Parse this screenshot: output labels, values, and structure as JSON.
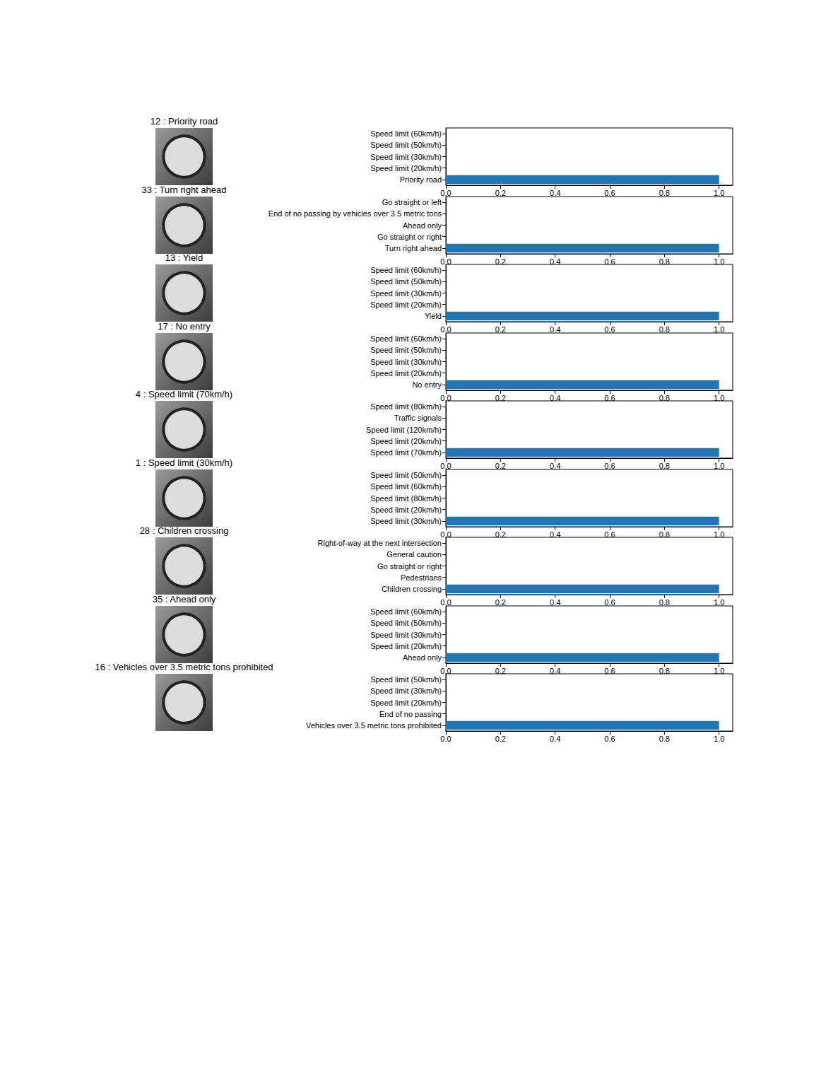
{
  "chart_data": [
    {
      "type": "bar",
      "orientation": "horizontal",
      "title": "12 : Priority road",
      "categories": [
        "Priority road",
        "Speed limit (20km/h)",
        "Speed limit (30km/h)",
        "Speed limit (50km/h)",
        "Speed limit (60km/h)"
      ],
      "values": [
        1.0,
        0,
        0,
        0,
        0
      ],
      "color": "#1f77b4",
      "grid": false,
      "xlim": [
        0,
        1.05
      ],
      "xticks": [
        {
          "value": 0,
          "label": "0.0"
        },
        {
          "value": 0.2,
          "label": "0.2"
        },
        {
          "value": 0.4,
          "label": "0.4"
        },
        {
          "value": 0.6,
          "label": "0.6"
        },
        {
          "value": 0.8,
          "label": "0.8"
        },
        {
          "value": 1.0,
          "label": "1.0"
        }
      ]
    },
    {
      "type": "bar",
      "orientation": "horizontal",
      "title": "33 : Turn right ahead",
      "categories": [
        "Turn right ahead",
        "Go straight or right",
        "Ahead only",
        "End of no passing by vehicles over 3.5 metric tons",
        "Go straight or left"
      ],
      "values": [
        1.0,
        0,
        0,
        0,
        0
      ],
      "color": "#1f77b4",
      "grid": false,
      "xlim": [
        0,
        1.05
      ],
      "xticks": [
        {
          "value": 0,
          "label": "0.0"
        },
        {
          "value": 0.2,
          "label": "0.2"
        },
        {
          "value": 0.4,
          "label": "0.4"
        },
        {
          "value": 0.6,
          "label": "0.6"
        },
        {
          "value": 0.8,
          "label": "0.8"
        },
        {
          "value": 1.0,
          "label": "1.0"
        }
      ]
    },
    {
      "type": "bar",
      "orientation": "horizontal",
      "title": "13 : Yield",
      "categories": [
        "Yield",
        "Speed limit (20km/h)",
        "Speed limit (30km/h)",
        "Speed limit (50km/h)",
        "Speed limit (60km/h)"
      ],
      "values": [
        1.0,
        0,
        0,
        0,
        0
      ],
      "color": "#1f77b4",
      "grid": false,
      "xlim": [
        0,
        1.05
      ],
      "xticks": [
        {
          "value": 0,
          "label": "0.0"
        },
        {
          "value": 0.2,
          "label": "0.2"
        },
        {
          "value": 0.4,
          "label": "0.4"
        },
        {
          "value": 0.6,
          "label": "0.6"
        },
        {
          "value": 0.8,
          "label": "0.8"
        },
        {
          "value": 1.0,
          "label": "1.0"
        }
      ]
    },
    {
      "type": "bar",
      "orientation": "horizontal",
      "title": "17 : No entry",
      "categories": [
        "No entry",
        "Speed limit (20km/h)",
        "Speed limit (30km/h)",
        "Speed limit (50km/h)",
        "Speed limit (60km/h)"
      ],
      "values": [
        1.0,
        0,
        0,
        0,
        0
      ],
      "color": "#1f77b4",
      "grid": false,
      "xlim": [
        0,
        1.05
      ],
      "xticks": [
        {
          "value": 0,
          "label": "0.0"
        },
        {
          "value": 0.2,
          "label": "0.2"
        },
        {
          "value": 0.4,
          "label": "0.4"
        },
        {
          "value": 0.6,
          "label": "0.6"
        },
        {
          "value": 0.8,
          "label": "0.8"
        },
        {
          "value": 1.0,
          "label": "1.0"
        }
      ]
    },
    {
      "type": "bar",
      "orientation": "horizontal",
      "title": "4 : Speed limit (70km/h)",
      "categories": [
        "Speed limit (70km/h)",
        "Speed limit (20km/h)",
        "Speed limit (120km/h)",
        "Traffic signals",
        "Speed limit (80km/h)"
      ],
      "values": [
        1.0,
        0,
        0,
        0,
        0
      ],
      "color": "#1f77b4",
      "grid": false,
      "xlim": [
        0,
        1.05
      ],
      "xticks": [
        {
          "value": 0,
          "label": "0.0"
        },
        {
          "value": 0.2,
          "label": "0.2"
        },
        {
          "value": 0.4,
          "label": "0.4"
        },
        {
          "value": 0.6,
          "label": "0.6"
        },
        {
          "value": 0.8,
          "label": "0.8"
        },
        {
          "value": 1.0,
          "label": "1.0"
        }
      ]
    },
    {
      "type": "bar",
      "orientation": "horizontal",
      "title": "1 : Speed limit (30km/h)",
      "categories": [
        "Speed limit (30km/h)",
        "Speed limit (20km/h)",
        "Speed limit (80km/h)",
        "Speed limit (60km/h)",
        "Speed limit (50km/h)"
      ],
      "values": [
        1.0,
        0,
        0,
        0,
        0
      ],
      "color": "#1f77b4",
      "grid": false,
      "xlim": [
        0,
        1.05
      ],
      "xticks": [
        {
          "value": 0,
          "label": "0.0"
        },
        {
          "value": 0.2,
          "label": "0.2"
        },
        {
          "value": 0.4,
          "label": "0.4"
        },
        {
          "value": 0.6,
          "label": "0.6"
        },
        {
          "value": 0.8,
          "label": "0.8"
        },
        {
          "value": 1.0,
          "label": "1.0"
        }
      ]
    },
    {
      "type": "bar",
      "orientation": "horizontal",
      "title": "28 : Children crossing",
      "categories": [
        "Children crossing",
        "Pedestrians",
        "Go straight or right",
        "General caution",
        "Right-of-way at the next intersection"
      ],
      "values": [
        1.0,
        0,
        0,
        0,
        0
      ],
      "color": "#1f77b4",
      "grid": false,
      "xlim": [
        0,
        1.05
      ],
      "xticks": [
        {
          "value": 0,
          "label": "0.0"
        },
        {
          "value": 0.2,
          "label": "0.2"
        },
        {
          "value": 0.4,
          "label": "0.4"
        },
        {
          "value": 0.6,
          "label": "0.6"
        },
        {
          "value": 0.8,
          "label": "0.8"
        },
        {
          "value": 1.0,
          "label": "1.0"
        }
      ]
    },
    {
      "type": "bar",
      "orientation": "horizontal",
      "title": "35 : Ahead only",
      "categories": [
        "Ahead only",
        "Speed limit (20km/h)",
        "Speed limit (30km/h)",
        "Speed limit (50km/h)",
        "Speed limit (60km/h)"
      ],
      "values": [
        1.0,
        0,
        0,
        0,
        0
      ],
      "color": "#1f77b4",
      "grid": false,
      "xlim": [
        0,
        1.05
      ],
      "xticks": [
        {
          "value": 0,
          "label": "0.0"
        },
        {
          "value": 0.2,
          "label": "0.2"
        },
        {
          "value": 0.4,
          "label": "0.4"
        },
        {
          "value": 0.6,
          "label": "0.6"
        },
        {
          "value": 0.8,
          "label": "0.8"
        },
        {
          "value": 1.0,
          "label": "1.0"
        }
      ]
    },
    {
      "type": "bar",
      "orientation": "horizontal",
      "title": "16 : Vehicles over 3.5 metric tons prohibited",
      "categories": [
        "Vehicles over 3.5 metric tons prohibited",
        "End of no passing",
        "Speed limit (20km/h)",
        "Speed limit (30km/h)",
        "Speed limit (50km/h)"
      ],
      "values": [
        1.0,
        0,
        0,
        0,
        0
      ],
      "color": "#1f77b4",
      "grid": false,
      "xlim": [
        0,
        1.05
      ],
      "xticks": [
        {
          "value": 0,
          "label": "0.0"
        },
        {
          "value": 0.2,
          "label": "0.2"
        },
        {
          "value": 0.4,
          "label": "0.4"
        },
        {
          "value": 0.6,
          "label": "0.6"
        },
        {
          "value": 0.8,
          "label": "0.8"
        },
        {
          "value": 1.0,
          "label": "1.0"
        }
      ]
    }
  ]
}
